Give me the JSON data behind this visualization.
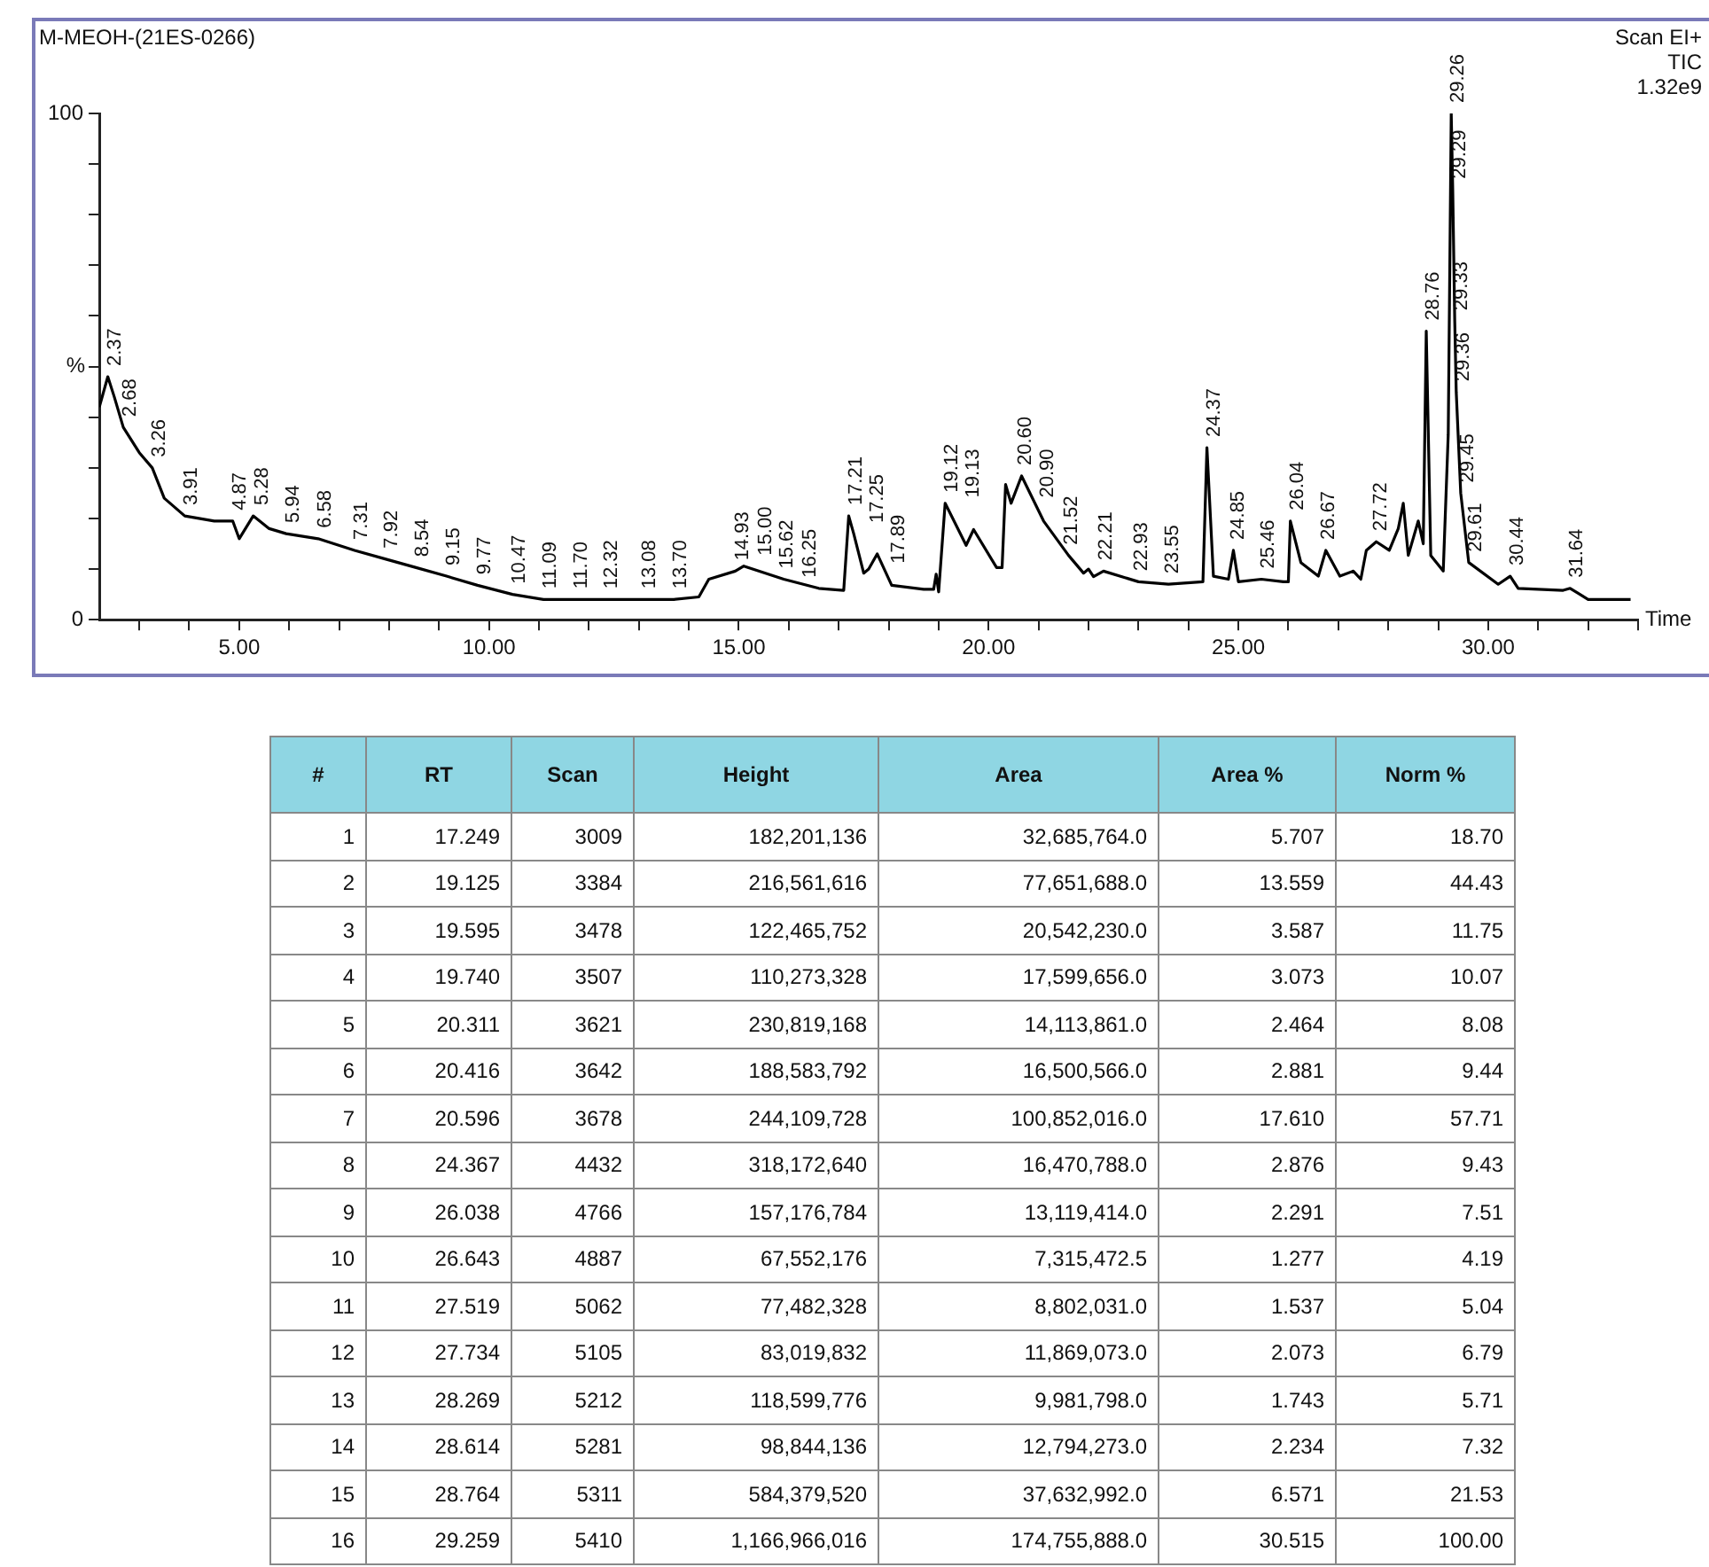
{
  "chart_data": [
    {
      "type": "line",
      "title": "M-MEOH-(21ES-0266)",
      "xlabel": "Time",
      "ylabel": "%",
      "marker": "none",
      "annotations": [
        "Scan EI+",
        "TIC",
        "1.32e9",
        {
          "text": "2.37",
          "x": 2.37,
          "y": 48
        },
        {
          "text": "2.68",
          "x": 2.68,
          "y": 38
        },
        {
          "text": "3.26",
          "x": 3.26,
          "y": 30
        },
        {
          "text": "3.91",
          "x": 3.91,
          "y": 20.5
        },
        {
          "text": "4.87",
          "x": 4.87,
          "y": 19.5
        },
        {
          "text": "5.28",
          "x": 5.28,
          "y": 20.5
        },
        {
          "text": "5.94",
          "x": 5.94,
          "y": 17
        },
        {
          "text": "6.58",
          "x": 6.58,
          "y": 16
        },
        {
          "text": "7.31",
          "x": 7.31,
          "y": 13.7
        },
        {
          "text": "7.92",
          "x": 7.92,
          "y": 12
        },
        {
          "text": "8.54",
          "x": 8.54,
          "y": 10.3
        },
        {
          "text": "9.15",
          "x": 9.15,
          "y": 8.6
        },
        {
          "text": "9.77",
          "x": 9.77,
          "y": 6.8
        },
        {
          "text": "10.47",
          "x": 10.47,
          "y": 5
        },
        {
          "text": "11.09",
          "x": 11.09,
          "y": 4
        },
        {
          "text": "11.70",
          "x": 11.7,
          "y": 4
        },
        {
          "text": "12.32",
          "x": 12.32,
          "y": 4
        },
        {
          "text": "13.08",
          "x": 13.08,
          "y": 4
        },
        {
          "text": "13.70",
          "x": 13.7,
          "y": 4
        },
        {
          "text": "14.93",
          "x": 14.93,
          "y": 9.6
        },
        {
          "text": "15.00",
          "x": 15.0,
          "y": 10.6
        },
        {
          "text": "15.62",
          "x": 15.62,
          "y": 8
        },
        {
          "text": "16.25",
          "x": 16.25,
          "y": 6.2
        },
        {
          "text": "17.21",
          "x": 17.21,
          "y": 20.5
        },
        {
          "text": "17.25",
          "x": 17.25,
          "y": 17
        },
        {
          "text": "17.89",
          "x": 17.89,
          "y": 9
        },
        {
          "text": "19.12",
          "x": 19.12,
          "y": 23
        },
        {
          "text": "19.13",
          "x": 19.13,
          "y": 22
        },
        {
          "text": "20.60",
          "x": 20.6,
          "y": 28.4
        },
        {
          "text": "20.90",
          "x": 20.9,
          "y": 22
        },
        {
          "text": "21.52",
          "x": 21.52,
          "y": 12.7
        },
        {
          "text": "22.21",
          "x": 22.21,
          "y": 9.6
        },
        {
          "text": "22.93",
          "x": 22.93,
          "y": 7.5
        },
        {
          "text": "23.55",
          "x": 23.55,
          "y": 7
        },
        {
          "text": "24.37",
          "x": 24.37,
          "y": 34
        },
        {
          "text": "24.85",
          "x": 24.85,
          "y": 13.7
        },
        {
          "text": "25.46",
          "x": 25.46,
          "y": 8
        },
        {
          "text": "26.04",
          "x": 26.04,
          "y": 19.5
        },
        {
          "text": "26.67",
          "x": 26.67,
          "y": 13.7
        },
        {
          "text": "27.72",
          "x": 27.72,
          "y": 15.4
        },
        {
          "text": "28.76",
          "x": 28.76,
          "y": 57
        },
        {
          "text": "29.26",
          "x": 29.26,
          "y": 100
        },
        {
          "text": "29.29",
          "x": 29.29,
          "y": 85
        },
        {
          "text": "29.33",
          "x": 29.33,
          "y": 59
        },
        {
          "text": "29.36",
          "x": 29.36,
          "y": 45
        },
        {
          "text": "29.45",
          "x": 29.45,
          "y": 25
        },
        {
          "text": "29.61",
          "x": 29.61,
          "y": 11.3
        },
        {
          "text": "30.44",
          "x": 30.44,
          "y": 8.6
        },
        {
          "text": "31.64",
          "x": 31.64,
          "y": 6.2
        }
      ],
      "x": [
        2.2,
        2.37,
        2.5,
        2.68,
        3.0,
        3.26,
        3.5,
        3.91,
        4.5,
        4.87,
        5.0,
        5.28,
        5.6,
        5.94,
        6.58,
        7.31,
        7.92,
        8.54,
        9.15,
        9.77,
        10.47,
        11.09,
        12.32,
        13.08,
        13.7,
        14.2,
        14.4,
        14.93,
        15.1,
        15.9,
        16.6,
        17.1,
        17.2,
        17.3,
        17.5,
        17.6,
        17.77,
        18.06,
        18.7,
        18.9,
        18.95,
        19.0,
        19.13,
        19.55,
        19.7,
        20.16,
        20.27,
        20.34,
        20.45,
        20.66,
        21.1,
        21.6,
        21.9,
        22.0,
        22.1,
        22.3,
        23.0,
        23.6,
        24.29,
        24.37,
        24.5,
        24.8,
        24.9,
        25.0,
        25.46,
        25.9,
        26.0,
        26.04,
        26.25,
        26.6,
        26.75,
        27.03,
        27.3,
        27.45,
        27.56,
        27.76,
        28.02,
        28.2,
        28.3,
        28.4,
        28.6,
        28.7,
        28.76,
        28.85,
        29.1,
        29.2,
        29.26,
        29.29,
        29.33,
        29.36,
        29.45,
        29.61,
        30.2,
        30.44,
        30.6,
        31.5,
        31.64,
        32.0,
        32.85
      ],
      "series": [
        {
          "color": "#000000",
          "values": [
            42,
            48,
            44,
            38,
            33,
            30,
            24,
            20.5,
            19.5,
            19.5,
            16,
            20.5,
            18,
            17,
            16,
            13.7,
            12,
            10.3,
            8.6,
            6.8,
            5,
            4,
            4,
            4,
            4,
            4.5,
            8,
            9.6,
            10.6,
            8,
            6.2,
            5.8,
            20.5,
            17,
            9.2,
            10,
            13,
            6.8,
            6,
            6,
            9,
            5.5,
            23,
            14.7,
            17.8,
            10.3,
            10.3,
            26.7,
            23,
            28.4,
            19.5,
            12.7,
            9.2,
            10,
            8.5,
            9.6,
            7.5,
            7,
            7.5,
            34,
            8.6,
            8,
            13.7,
            7.5,
            8,
            7.5,
            7.5,
            19.5,
            11.3,
            8.6,
            13.7,
            8.6,
            9.6,
            8,
            13.7,
            15.4,
            13.7,
            18,
            23,
            12.7,
            19.5,
            15,
            57,
            12.7,
            9.6,
            36.6,
            100,
            85,
            59,
            45,
            25,
            11.3,
            7,
            8.6,
            6.2,
            5.8,
            6.2,
            4,
            4
          ]
        }
      ],
      "xlim": [
        2.2,
        33
      ],
      "ylim": [
        0,
        100
      ],
      "xticks": [
        {
          "value": 3,
          "label": null
        },
        {
          "value": 4,
          "label": null
        },
        {
          "value": 5,
          "label": "5.00"
        },
        {
          "value": 6,
          "label": null
        },
        {
          "value": 7,
          "label": null
        },
        {
          "value": 8,
          "label": null
        },
        {
          "value": 9,
          "label": null
        },
        {
          "value": 10,
          "label": "10.00"
        },
        {
          "value": 11,
          "label": null
        },
        {
          "value": 12,
          "label": null
        },
        {
          "value": 13,
          "label": null
        },
        {
          "value": 14,
          "label": null
        },
        {
          "value": 15,
          "label": "15.00"
        },
        {
          "value": 16,
          "label": null
        },
        {
          "value": 17,
          "label": null
        },
        {
          "value": 18,
          "label": null
        },
        {
          "value": 19,
          "label": null
        },
        {
          "value": 20,
          "label": "20.00"
        },
        {
          "value": 21,
          "label": null
        },
        {
          "value": 22,
          "label": null
        },
        {
          "value": 23,
          "label": null
        },
        {
          "value": 24,
          "label": null
        },
        {
          "value": 25,
          "label": "25.00"
        },
        {
          "value": 26,
          "label": null
        },
        {
          "value": 27,
          "label": null
        },
        {
          "value": 28,
          "label": null
        },
        {
          "value": 29,
          "label": null
        },
        {
          "value": 30,
          "label": "30.00"
        },
        {
          "value": 31,
          "label": null
        },
        {
          "value": 32,
          "label": null
        },
        {
          "value": 33,
          "label": null
        }
      ],
      "yticks": [
        0,
        {
          "value": 10,
          "label": null
        },
        {
          "value": 20,
          "label": null
        },
        {
          "value": 30,
          "label": null
        },
        {
          "value": 40,
          "label": null
        },
        {
          "value": 50,
          "label": null
        },
        {
          "value": 60,
          "label": null
        },
        {
          "value": 70,
          "label": null
        },
        {
          "value": 80,
          "label": null
        },
        {
          "value": 90,
          "label": null
        },
        100
      ]
    },
    {
      "type": "other",
      "categories": [
        "#",
        "RT",
        "Scan",
        "Height",
        "Area",
        "Area %",
        "Norm %"
      ],
      "series": [
        {
          "values": [
            1,
            17.249,
            3009,
            182201136,
            32685764.0,
            5.707,
            18.7
          ],
          "value_labels": [
            "1",
            "17.249",
            "3009",
            "182,201,136",
            "32,685,764.0",
            "5.707",
            "18.70"
          ]
        },
        {
          "values": [
            2,
            19.125,
            3384,
            216561616,
            77651688.0,
            13.559,
            44.43
          ],
          "value_labels": [
            "2",
            "19.125",
            "3384",
            "216,561,616",
            "77,651,688.0",
            "13.559",
            "44.43"
          ]
        },
        {
          "values": [
            3,
            19.595,
            3478,
            122465752,
            20542230.0,
            3.587,
            11.75
          ],
          "value_labels": [
            "3",
            "19.595",
            "3478",
            "122,465,752",
            "20,542,230.0",
            "3.587",
            "11.75"
          ]
        },
        {
          "values": [
            4,
            19.74,
            3507,
            110273328,
            17599656.0,
            3.073,
            10.07
          ],
          "value_labels": [
            "4",
            "19.740",
            "3507",
            "110,273,328",
            "17,599,656.0",
            "3.073",
            "10.07"
          ]
        },
        {
          "values": [
            5,
            20.311,
            3621,
            230819168,
            14113861.0,
            2.464,
            8.08
          ],
          "value_labels": [
            "5",
            "20.311",
            "3621",
            "230,819,168",
            "14,113,861.0",
            "2.464",
            "8.08"
          ]
        },
        {
          "values": [
            6,
            20.416,
            3642,
            188583792,
            16500566.0,
            2.881,
            9.44
          ],
          "value_labels": [
            "6",
            "20.416",
            "3642",
            "188,583,792",
            "16,500,566.0",
            "2.881",
            "9.44"
          ]
        },
        {
          "values": [
            7,
            20.596,
            3678,
            244109728,
            100852016.0,
            17.61,
            57.71
          ],
          "value_labels": [
            "7",
            "20.596",
            "3678",
            "244,109,728",
            "100,852,016.0",
            "17.610",
            "57.71"
          ]
        },
        {
          "values": [
            8,
            24.367,
            4432,
            318172640,
            16470788.0,
            2.876,
            9.43
          ],
          "value_labels": [
            "8",
            "24.367",
            "4432",
            "318,172,640",
            "16,470,788.0",
            "2.876",
            "9.43"
          ]
        },
        {
          "values": [
            9,
            26.038,
            4766,
            157176784,
            13119414.0,
            2.291,
            7.51
          ],
          "value_labels": [
            "9",
            "26.038",
            "4766",
            "157,176,784",
            "13,119,414.0",
            "2.291",
            "7.51"
          ]
        },
        {
          "values": [
            10,
            26.643,
            4887,
            67552176,
            7315472.5,
            1.277,
            4.19
          ],
          "value_labels": [
            "10",
            "26.643",
            "4887",
            "67,552,176",
            "7,315,472.5",
            "1.277",
            "4.19"
          ]
        },
        {
          "values": [
            11,
            27.519,
            5062,
            77482328,
            8802031.0,
            1.537,
            5.04
          ],
          "value_labels": [
            "11",
            "27.519",
            "5062",
            "77,482,328",
            "8,802,031.0",
            "1.537",
            "5.04"
          ]
        },
        {
          "values": [
            12,
            27.734,
            5105,
            83019832,
            11869073.0,
            2.073,
            6.79
          ],
          "value_labels": [
            "12",
            "27.734",
            "5105",
            "83,019,832",
            "11,869,073.0",
            "2.073",
            "6.79"
          ]
        },
        {
          "values": [
            13,
            28.269,
            5212,
            118599776,
            9981798.0,
            1.743,
            5.71
          ],
          "value_labels": [
            "13",
            "28.269",
            "5212",
            "118,599,776",
            "9,981,798.0",
            "1.743",
            "5.71"
          ]
        },
        {
          "values": [
            14,
            28.614,
            5281,
            98844136,
            12794273.0,
            2.234,
            7.32
          ],
          "value_labels": [
            "14",
            "28.614",
            "5281",
            "98,844,136",
            "12,794,273.0",
            "2.234",
            "7.32"
          ]
        },
        {
          "values": [
            15,
            28.764,
            5311,
            584379520,
            37632992.0,
            6.571,
            21.53
          ],
          "value_labels": [
            "15",
            "28.764",
            "5311",
            "584,379,520",
            "37,632,992.0",
            "6.571",
            "21.53"
          ]
        },
        {
          "values": [
            16,
            29.259,
            5410,
            1166966016,
            174755888.0,
            30.515,
            100.0
          ],
          "value_labels": [
            "16",
            "29.259",
            "5410",
            "1,166,966,016",
            "174,755,888.0",
            "30.515",
            "100.00"
          ]
        }
      ]
    }
  ]
}
